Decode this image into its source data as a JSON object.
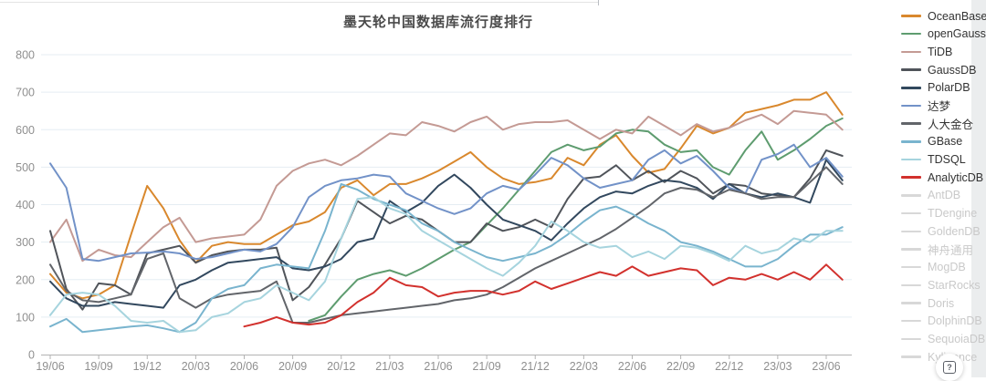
{
  "ui": {
    "help_label": "?"
  },
  "chart_data": {
    "type": "line",
    "title": "墨天轮中国数据库流行度排行",
    "xlabel": "",
    "ylabel": "",
    "ylim": [
      0,
      800
    ],
    "y_ticks": [
      0,
      100,
      200,
      300,
      400,
      500,
      600,
      700,
      800
    ],
    "x_tick_every": 3,
    "grid": true,
    "legend_position": "right",
    "colors": {
      "grid": "#e5edf3",
      "axis_line": "#b3b3b3",
      "axis_label": "#8f8f8f",
      "title": "#4a4a4a",
      "disabled_swatch": "#d8d8d8",
      "disabled_text": "#c9c9c9"
    },
    "months": [
      "19/06",
      "19/07",
      "19/08",
      "19/09",
      "19/10",
      "19/11",
      "19/12",
      "20/01",
      "20/02",
      "20/03",
      "20/04",
      "20/05",
      "20/06",
      "20/07",
      "20/08",
      "20/09",
      "20/10",
      "20/11",
      "20/12",
      "21/01",
      "21/02",
      "21/03",
      "21/04",
      "21/05",
      "21/06",
      "21/07",
      "21/08",
      "21/09",
      "21/10",
      "21/11",
      "21/12",
      "22/01",
      "22/02",
      "22/03",
      "22/04",
      "22/05",
      "22/06",
      "22/07",
      "22/08",
      "22/09",
      "22/10",
      "22/11",
      "22/12",
      "23/01",
      "23/02",
      "23/03",
      "23/04",
      "23/05",
      "23/06",
      "23/07"
    ],
    "series": [
      {
        "name": "OceanBase",
        "color": "#d9882d",
        "values": [
          215,
          165,
          150,
          160,
          185,
          320,
          450,
          390,
          305,
          245,
          290,
          300,
          295,
          295,
          320,
          345,
          355,
          380,
          445,
          465,
          425,
          455,
          455,
          470,
          490,
          515,
          540,
          500,
          470,
          455,
          460,
          470,
          525,
          505,
          560,
          585,
          530,
          485,
          495,
          550,
          610,
          590,
          605,
          645,
          655,
          665,
          680,
          680,
          700,
          640
        ]
      },
      {
        "name": "openGauss",
        "color": "#5e9c6f",
        "values": [
          null,
          null,
          null,
          null,
          null,
          null,
          null,
          null,
          null,
          null,
          null,
          null,
          null,
          null,
          null,
          null,
          90,
          105,
          155,
          200,
          215,
          225,
          210,
          230,
          255,
          280,
          300,
          345,
          390,
          440,
          490,
          540,
          560,
          545,
          555,
          590,
          600,
          595,
          560,
          540,
          545,
          500,
          480,
          545,
          595,
          520,
          545,
          575,
          610,
          630
        ]
      },
      {
        "name": "TiDB",
        "color": "#c49a94",
        "values": [
          300,
          360,
          250,
          280,
          265,
          260,
          300,
          340,
          365,
          300,
          310,
          315,
          320,
          360,
          450,
          490,
          510,
          520,
          505,
          530,
          560,
          590,
          585,
          620,
          610,
          595,
          620,
          635,
          600,
          615,
          620,
          620,
          625,
          600,
          575,
          600,
          590,
          635,
          610,
          585,
          615,
          595,
          605,
          625,
          640,
          615,
          650,
          645,
          640,
          600
        ]
      },
      {
        "name": "GaussDB",
        "color": "#50545a",
        "values": [
          330,
          175,
          120,
          190,
          185,
          160,
          270,
          280,
          290,
          245,
          265,
          275,
          280,
          280,
          285,
          145,
          180,
          240,
          310,
          410,
          380,
          350,
          370,
          360,
          330,
          300,
          300,
          350,
          330,
          340,
          360,
          340,
          415,
          470,
          475,
          505,
          465,
          490,
          460,
          490,
          470,
          430,
          455,
          450,
          430,
          425,
          420,
          470,
          545,
          530
        ]
      },
      {
        "name": "PolarDB",
        "color": "#32485e",
        "values": [
          195,
          150,
          130,
          130,
          140,
          135,
          130,
          125,
          185,
          200,
          225,
          245,
          250,
          255,
          260,
          230,
          225,
          235,
          255,
          300,
          310,
          410,
          380,
          405,
          450,
          480,
          445,
          400,
          360,
          345,
          330,
          305,
          350,
          390,
          420,
          435,
          430,
          450,
          465,
          460,
          445,
          415,
          455,
          430,
          420,
          430,
          420,
          405,
          520,
          465
        ]
      },
      {
        "name": "达梦",
        "color": "#7292c8",
        "values": [
          510,
          445,
          255,
          250,
          260,
          270,
          272,
          275,
          270,
          255,
          260,
          270,
          280,
          275,
          295,
          340,
          420,
          450,
          465,
          470,
          480,
          475,
          430,
          410,
          390,
          375,
          390,
          430,
          450,
          440,
          480,
          525,
          505,
          470,
          445,
          455,
          465,
          520,
          545,
          510,
          530,
          490,
          445,
          430,
          520,
          535,
          560,
          500,
          525,
          475
        ]
      },
      {
        "name": "人大金仓",
        "color": "#62656a",
        "values": [
          240,
          170,
          145,
          140,
          150,
          160,
          255,
          270,
          150,
          125,
          150,
          160,
          165,
          170,
          195,
          85,
          85,
          95,
          105,
          110,
          115,
          120,
          125,
          130,
          135,
          145,
          150,
          160,
          180,
          205,
          230,
          250,
          270,
          290,
          310,
          335,
          365,
          395,
          430,
          445,
          440,
          420,
          440,
          430,
          415,
          420,
          420,
          460,
          500,
          455
        ]
      },
      {
        "name": "GBase",
        "color": "#79b4ce",
        "values": [
          75,
          95,
          60,
          65,
          70,
          75,
          78,
          70,
          60,
          85,
          150,
          175,
          185,
          230,
          240,
          235,
          230,
          330,
          455,
          440,
          415,
          400,
          385,
          350,
          330,
          300,
          280,
          260,
          250,
          260,
          270,
          290,
          320,
          355,
          385,
          395,
          375,
          350,
          330,
          300,
          290,
          275,
          255,
          235,
          235,
          255,
          290,
          320,
          320,
          340
        ]
      },
      {
        "name": "TDSQL",
        "color": "#a6d4de",
        "values": [
          105,
          160,
          165,
          160,
          130,
          90,
          85,
          90,
          60,
          65,
          100,
          110,
          140,
          150,
          185,
          165,
          145,
          195,
          310,
          415,
          420,
          390,
          375,
          330,
          305,
          280,
          255,
          230,
          210,
          245,
          290,
          355,
          330,
          300,
          285,
          290,
          260,
          275,
          255,
          290,
          285,
          270,
          250,
          290,
          270,
          280,
          310,
          300,
          330,
          330
        ]
      },
      {
        "name": "AnalyticDB",
        "color": "#d2312d",
        "values": [
          null,
          null,
          null,
          null,
          null,
          null,
          null,
          null,
          null,
          null,
          null,
          null,
          75,
          85,
          100,
          85,
          80,
          85,
          105,
          140,
          165,
          205,
          185,
          180,
          155,
          165,
          170,
          170,
          160,
          170,
          195,
          175,
          190,
          205,
          220,
          210,
          235,
          210,
          220,
          230,
          225,
          185,
          205,
          200,
          215,
          200,
          220,
          200,
          240,
          200
        ]
      }
    ],
    "legend_disabled": [
      "AntDB",
      "TDengine",
      "GoldenDB",
      "神舟通用",
      "MogDB",
      "StarRocks",
      "Doris",
      "DolphinDB",
      "SequoiaDB",
      "Kyligence"
    ]
  }
}
